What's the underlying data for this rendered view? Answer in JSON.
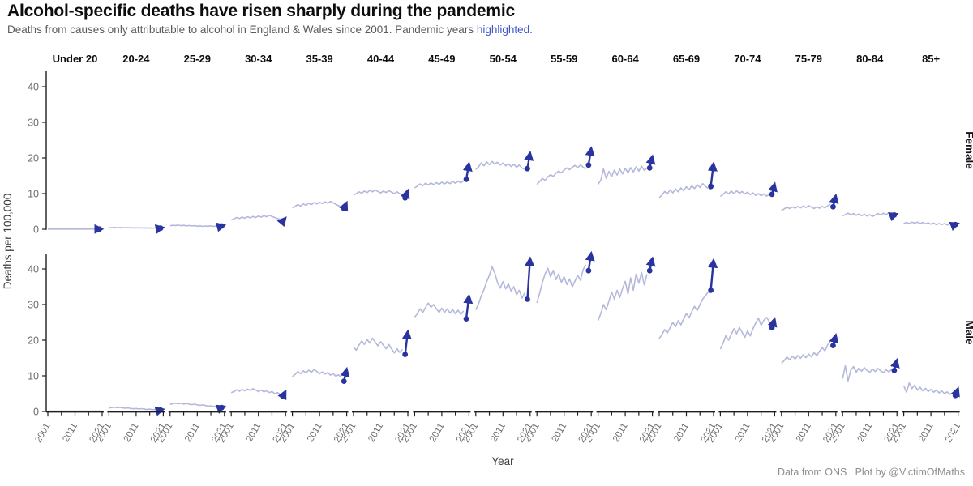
{
  "header": {
    "title": "Alcohol-specific deaths have risen sharply during the pandemic",
    "subtitle_prefix": "Deaths from causes only attributable to alcohol in England & Wales since 2001. Pandemic years ",
    "subtitle_highlight": "highlighted."
  },
  "caption": "Data from ONS | Plot by @VictimOfMaths",
  "colors": {
    "history_line": "#b4b8da",
    "pandemic": "#2a34a0",
    "highlight_text": "#4155c6",
    "axis_line": "#1f1f1f",
    "axis_text": "#6e6e6e",
    "axis_title_text": "#3d3d3d",
    "title_text": "#0d0d0d",
    "subtitle_text": "#5a5a5a",
    "strip_text": "#141414",
    "caption_text": "#8f8f8f"
  },
  "chart_data": {
    "type": "line",
    "facet_rows": [
      "Female",
      "Male"
    ],
    "age_groups": [
      "Under 20",
      "20-24",
      "25-29",
      "30-34",
      "35-39",
      "40-44",
      "45-49",
      "50-54",
      "55-59",
      "60-64",
      "65-69",
      "70-74",
      "75-79",
      "80-84",
      "85+"
    ],
    "years": {
      "start": 2001,
      "end": 2021
    },
    "pandemic_years": [
      2020,
      2021
    ],
    "x_tick_labels": [
      "2001",
      "2011",
      "2021"
    ],
    "x_minor_ticks": [
      2006,
      2016
    ],
    "y_ticks": [
      0,
      10,
      20,
      30,
      40
    ],
    "ylim": [
      0,
      45
    ],
    "xlabel": "Year",
    "ylabel": "Deaths per 100,000",
    "legend": "none",
    "series": {
      "Female": {
        "Under 20": [
          0.05,
          0.05,
          0.05,
          0.05,
          0.05,
          0.05,
          0.05,
          0.05,
          0.05,
          0.05,
          0.05,
          0.05,
          0.05,
          0.05,
          0.05,
          0.05,
          0.05,
          0.05,
          0.05,
          0.05,
          0.05
        ],
        "20-24": [
          0.4,
          0.45,
          0.5,
          0.42,
          0.48,
          0.44,
          0.4,
          0.45,
          0.38,
          0.42,
          0.36,
          0.4,
          0.34,
          0.38,
          0.32,
          0.36,
          0.3,
          0.34,
          0.3,
          0.3,
          0.45
        ],
        "25-29": [
          1.0,
          1.1,
          1.05,
          1.15,
          1.0,
          1.1,
          0.95,
          1.05,
          0.9,
          1.0,
          0.85,
          0.95,
          0.8,
          0.9,
          0.85,
          0.95,
          0.8,
          0.9,
          0.85,
          0.9,
          1.1
        ],
        "30-34": [
          2.6,
          2.9,
          3.3,
          3.0,
          3.4,
          3.1,
          3.5,
          3.2,
          3.6,
          3.3,
          3.7,
          3.4,
          3.8,
          3.5,
          3.9,
          3.6,
          3.3,
          3.0,
          2.8,
          2.3,
          3.2
        ],
        "35-39": [
          6.0,
          6.4,
          6.9,
          6.5,
          7.1,
          6.7,
          7.3,
          6.9,
          7.5,
          7.1,
          7.6,
          7.2,
          7.7,
          7.3,
          7.8,
          7.4,
          7.0,
          6.6,
          6.3,
          5.8,
          7.5
        ],
        "40-44": [
          9.6,
          10.0,
          10.5,
          10.1,
          10.7,
          10.3,
          10.9,
          10.5,
          11.0,
          10.6,
          10.2,
          10.7,
          10.3,
          10.8,
          10.4,
          10.0,
          10.5,
          10.0,
          9.6,
          8.8,
          10.9
        ],
        "45-49": [
          11.6,
          12.1,
          12.7,
          12.2,
          12.9,
          12.4,
          13.0,
          12.5,
          13.1,
          12.6,
          13.2,
          12.7,
          13.3,
          12.8,
          13.4,
          12.9,
          13.5,
          13.0,
          13.6,
          14.0,
          18.5
        ],
        "50-54": [
          16.8,
          17.5,
          18.6,
          17.8,
          18.9,
          18.1,
          19.0,
          18.3,
          18.8,
          18.0,
          18.6,
          17.8,
          18.4,
          17.6,
          18.2,
          17.4,
          18.0,
          17.2,
          16.8,
          17.0,
          21.5
        ],
        "55-59": [
          12.6,
          13.4,
          14.3,
          13.7,
          14.7,
          15.3,
          14.8,
          15.7,
          16.3,
          15.8,
          16.6,
          17.2,
          16.7,
          17.4,
          17.9,
          17.3,
          18.0,
          17.4,
          16.9,
          18.0,
          22.8
        ],
        "60-64": [
          12.6,
          13.8,
          16.9,
          14.3,
          16.2,
          14.8,
          16.6,
          15.2,
          16.9,
          15.5,
          17.1,
          15.8,
          17.3,
          16.1,
          17.5,
          16.3,
          17.7,
          16.5,
          17.2,
          17.2,
          20.5
        ],
        "65-69": [
          8.8,
          9.6,
          10.6,
          9.9,
          11.0,
          10.2,
          11.3,
          10.5,
          11.6,
          10.8,
          11.9,
          11.1,
          12.2,
          11.4,
          12.5,
          11.7,
          12.8,
          12.0,
          11.5,
          12.0,
          18.5
        ],
        "70-74": [
          9.2,
          9.8,
          10.5,
          9.9,
          10.7,
          10.0,
          10.8,
          10.1,
          10.6,
          9.9,
          10.4,
          9.7,
          10.2,
          9.5,
          10.0,
          9.4,
          9.9,
          9.3,
          9.8,
          9.8,
          12.8
        ],
        "75-79": [
          5.3,
          5.7,
          6.2,
          5.8,
          6.3,
          5.9,
          6.4,
          6.0,
          6.5,
          6.1,
          6.6,
          6.2,
          5.8,
          6.3,
          5.9,
          6.4,
          6.0,
          6.6,
          7.0,
          6.3,
          9.5
        ],
        "80-84": [
          3.8,
          4.1,
          4.5,
          4.0,
          4.4,
          3.9,
          4.3,
          3.8,
          4.2,
          3.7,
          4.1,
          3.6,
          4.0,
          4.4,
          4.0,
          4.5,
          4.1,
          4.6,
          4.2,
          4.0,
          4.3
        ],
        "85+": [
          1.6,
          1.9,
          1.6,
          2.0,
          1.7,
          2.0,
          1.6,
          1.9,
          1.5,
          1.8,
          1.4,
          1.7,
          1.3,
          1.6,
          1.3,
          1.6,
          1.2,
          1.5,
          1.3,
          1.3,
          1.6
        ]
      },
      "Male": {
        "Under 20": [
          0.1,
          0.1,
          0.1,
          0.1,
          0.1,
          0.1,
          0.1,
          0.1,
          0.1,
          0.1,
          0.1,
          0.1,
          0.1,
          0.1,
          0.1,
          0.1,
          0.1,
          0.1,
          0.1,
          0.1,
          0.1
        ],
        "20-24": [
          1.0,
          1.1,
          1.2,
          1.05,
          1.15,
          1.0,
          0.9,
          1.0,
          0.85,
          0.75,
          0.85,
          0.7,
          0.8,
          0.65,
          0.55,
          0.65,
          0.5,
          0.6,
          0.5,
          0.4,
          0.6
        ],
        "25-29": [
          2.0,
          2.2,
          2.35,
          2.15,
          2.3,
          2.1,
          2.25,
          2.05,
          1.9,
          2.05,
          1.85,
          1.7,
          1.85,
          1.65,
          1.5,
          1.6,
          1.4,
          1.5,
          1.3,
          1.1,
          1.4
        ],
        "30-34": [
          5.3,
          5.6,
          6.1,
          5.7,
          6.2,
          5.8,
          6.3,
          5.9,
          6.4,
          6.0,
          5.6,
          6.0,
          5.5,
          5.8,
          5.3,
          5.6,
          5.0,
          5.3,
          4.8,
          4.2,
          5.7
        ],
        "35-39": [
          9.8,
          10.4,
          11.2,
          10.6,
          11.4,
          10.8,
          11.6,
          11.0,
          11.8,
          11.2,
          10.6,
          11.1,
          10.5,
          10.9,
          10.2,
          10.6,
          9.9,
          10.3,
          9.5,
          8.5,
          12.0
        ],
        "40-44": [
          18.0,
          17.2,
          18.6,
          19.8,
          18.8,
          20.2,
          19.2,
          20.6,
          19.4,
          18.4,
          19.6,
          18.6,
          17.6,
          18.8,
          17.6,
          16.4,
          17.6,
          16.6,
          17.4,
          16.0,
          22.5
        ],
        "45-49": [
          26.5,
          27.4,
          28.8,
          27.8,
          29.2,
          30.4,
          29.2,
          30.0,
          28.8,
          27.8,
          29.0,
          27.8,
          28.8,
          27.6,
          28.6,
          27.4,
          28.4,
          27.2,
          28.2,
          26.0,
          32.5
        ],
        "50-54": [
          28.5,
          30.2,
          32.4,
          34.2,
          36.4,
          38.2,
          40.6,
          38.8,
          36.2,
          34.6,
          36.4,
          34.4,
          35.8,
          33.8,
          35.0,
          32.8,
          34.0,
          31.8,
          33.2,
          31.5,
          43.0
        ],
        "55-59": [
          30.5,
          33.2,
          36.2,
          38.6,
          40.2,
          37.8,
          39.6,
          37.0,
          38.6,
          36.2,
          37.8,
          35.6,
          37.2,
          35.0,
          36.6,
          38.2,
          36.8,
          39.8,
          41.2,
          39.5,
          44.5
        ],
        "60-64": [
          25.5,
          27.5,
          30.0,
          28.5,
          31.0,
          33.5,
          31.5,
          34.0,
          32.0,
          34.5,
          36.5,
          33.0,
          37.5,
          34.0,
          38.5,
          36.0,
          39.0,
          35.5,
          38.5,
          39.5,
          43.0
        ],
        "65-69": [
          20.5,
          21.5,
          23.0,
          22.0,
          23.5,
          25.0,
          23.8,
          25.5,
          24.3,
          26.0,
          27.5,
          26.3,
          28.0,
          29.5,
          28.3,
          30.0,
          31.5,
          32.5,
          33.5,
          34.0,
          42.5
        ],
        "70-74": [
          17.5,
          19.2,
          21.2,
          20.0,
          21.6,
          23.2,
          21.8,
          23.6,
          22.2,
          20.8,
          22.6,
          21.2,
          23.2,
          24.8,
          26.2,
          24.2,
          25.6,
          26.4,
          25.2,
          23.5,
          26.0
        ],
        "75-79": [
          13.5,
          14.3,
          15.3,
          14.5,
          15.5,
          14.7,
          15.7,
          14.9,
          15.9,
          15.1,
          16.1,
          15.3,
          16.5,
          15.7,
          16.9,
          17.9,
          17.0,
          18.7,
          19.8,
          18.5,
          21.5
        ],
        "80-84": [
          9.2,
          12.8,
          8.6,
          11.6,
          12.6,
          11.0,
          12.2,
          11.3,
          12.3,
          11.5,
          11.0,
          11.9,
          11.2,
          12.1,
          11.4,
          10.9,
          11.7,
          11.1,
          11.8,
          11.5,
          14.5
        ],
        "85+": [
          7.2,
          5.4,
          8.0,
          6.4,
          7.4,
          6.0,
          6.8,
          5.8,
          6.5,
          5.6,
          6.2,
          5.4,
          6.0,
          5.2,
          5.8,
          5.0,
          5.5,
          4.8,
          5.2,
          4.5,
          6.5
        ]
      }
    },
    "no_marker": [
      "Male/Under 20"
    ]
  }
}
